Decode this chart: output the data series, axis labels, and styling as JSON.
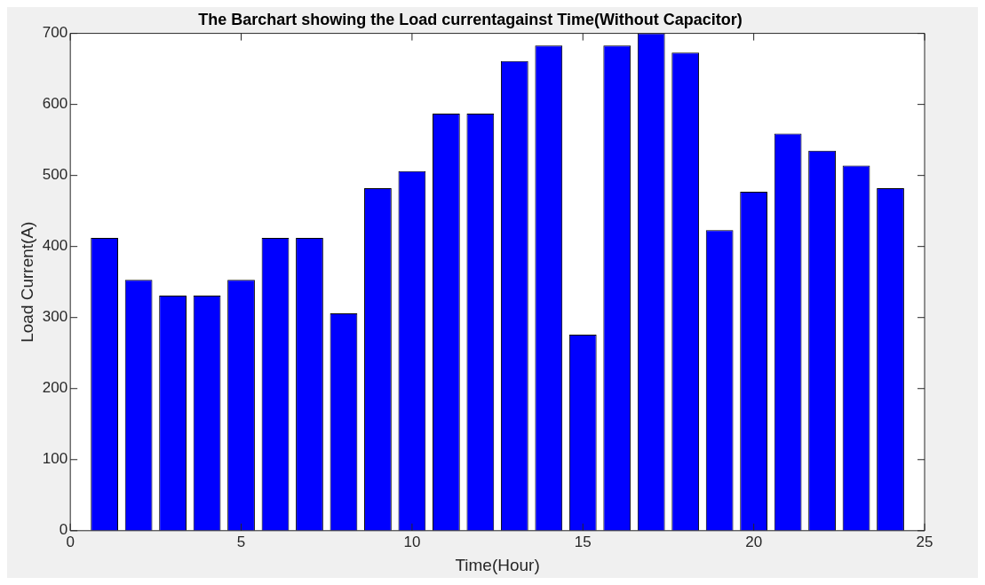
{
  "chart_data": {
    "type": "bar",
    "title": "The Barchart showing the Load currentagainst Time(Without Capacitor)",
    "xlabel": "Time(Hour)",
    "ylabel": "Load Current(A)",
    "x": [
      1,
      2,
      3,
      4,
      5,
      6,
      7,
      8,
      9,
      10,
      11,
      12,
      13,
      14,
      15,
      16,
      17,
      18,
      19,
      20,
      21,
      22,
      23,
      24
    ],
    "values": [
      412,
      353,
      331,
      331,
      353,
      412,
      412,
      306,
      482,
      506,
      587,
      587,
      661,
      683,
      276,
      683,
      700,
      673,
      423,
      477,
      559,
      535,
      514,
      482
    ],
    "color": "#0000ff",
    "xlim": [
      0,
      25
    ],
    "xticks": [
      0,
      5,
      10,
      15,
      20,
      25
    ],
    "ylim": [
      0,
      700
    ],
    "yticks": [
      0,
      100,
      200,
      300,
      400,
      500,
      600,
      700
    ],
    "grid": false,
    "legend": false
  }
}
